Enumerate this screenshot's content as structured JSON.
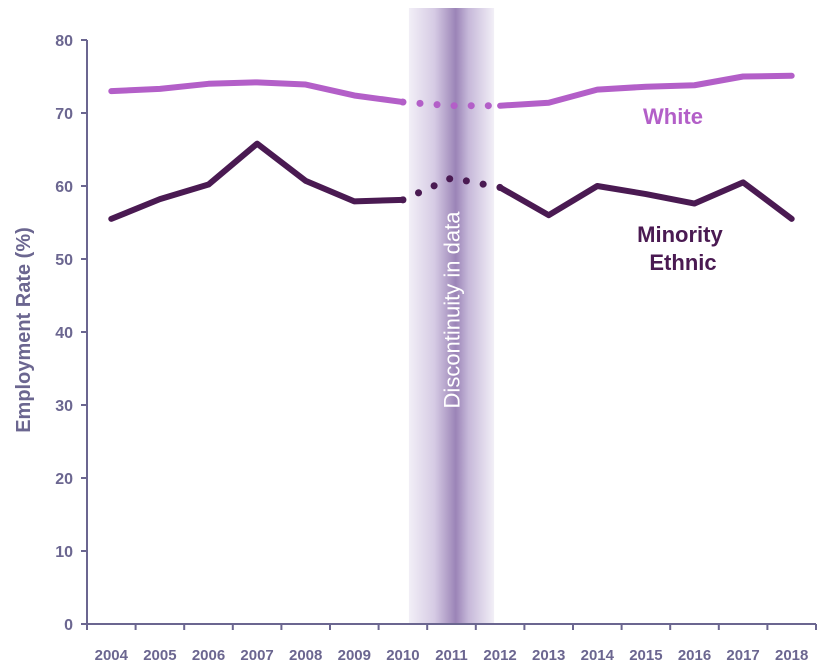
{
  "chart_data": {
    "type": "line",
    "ylabel": "Employment Rate (%)",
    "ylim": [
      0,
      80
    ],
    "yticks": [
      0,
      10,
      20,
      30,
      40,
      50,
      60,
      70,
      80
    ],
    "categories": [
      "2004",
      "2005",
      "2006",
      "2007",
      "2008",
      "2009",
      "2010",
      "2011",
      "2012",
      "2013",
      "2014",
      "2015",
      "2016",
      "2017",
      "2018"
    ],
    "grid": false,
    "discontinuity": {
      "label": "Discontinuity in data",
      "from": "2010",
      "to": "2012"
    },
    "series": [
      {
        "name": "White",
        "color": "#b35fc8",
        "values": [
          73.0,
          73.3,
          74.0,
          74.2,
          73.9,
          72.4,
          71.5,
          71.0,
          71.0,
          71.4,
          73.2,
          73.6,
          73.8,
          75.0,
          75.1
        ]
      },
      {
        "name": "Minority Ethnic",
        "name_lines": [
          "Minority",
          "Ethnic"
        ],
        "color": "#4a1a52",
        "values": [
          55.5,
          58.2,
          60.2,
          65.8,
          60.7,
          57.9,
          58.1,
          61.1,
          59.8,
          56.0,
          60.0,
          58.9,
          57.6,
          60.5,
          55.5
        ]
      }
    ]
  },
  "colors": {
    "axis": "#6b6690",
    "band_edge": "#f1eef6",
    "band_center": "#9d86b9"
  }
}
